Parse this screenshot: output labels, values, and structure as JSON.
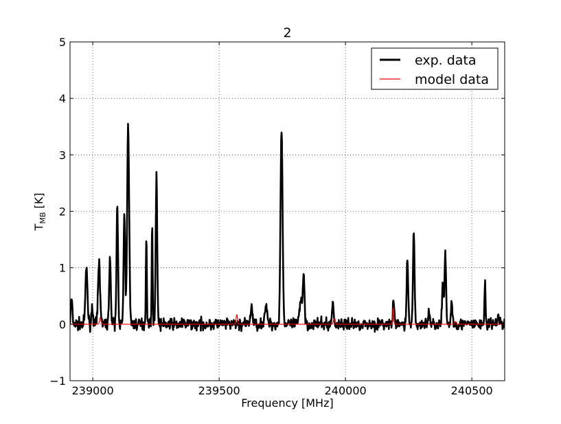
{
  "chart_data": {
    "type": "line",
    "title": "2",
    "xlabel": "Frequency [MHz]",
    "ylabel": "T",
    "ylabel_subscript": "MB",
    "ylabel_unit": "[K]",
    "xlim": [
      238910,
      240630
    ],
    "ylim": [
      -1,
      5
    ],
    "x_ticks": [
      239000,
      239500,
      240000,
      240500
    ],
    "x_tick_labels": [
      "239000",
      "239500",
      "240000",
      "240500"
    ],
    "y_ticks": [
      -1,
      0,
      1,
      2,
      3,
      4,
      5
    ],
    "y_tick_labels": [
      "−1",
      "0",
      "1",
      "2",
      "3",
      "4",
      "5"
    ],
    "grid": true,
    "legend_position": "top-right",
    "series": [
      {
        "name": "exp. data",
        "color": "#000000",
        "baseline": 0.0,
        "noise": 0.07,
        "peaks": [
          [
            238916,
            0.45,
            3
          ],
          [
            238975,
            1.0,
            4
          ],
          [
            238998,
            0.3,
            3
          ],
          [
            239025,
            1.1,
            4
          ],
          [
            239068,
            1.25,
            3
          ],
          [
            239097,
            2.1,
            3
          ],
          [
            239125,
            1.95,
            3
          ],
          [
            239140,
            3.5,
            4
          ],
          [
            239212,
            1.55,
            2
          ],
          [
            239235,
            1.7,
            2
          ],
          [
            239252,
            2.65,
            3
          ],
          [
            239628,
            0.3,
            4
          ],
          [
            239685,
            0.3,
            5
          ],
          [
            239747,
            3.5,
            4
          ],
          [
            239825,
            0.45,
            6
          ],
          [
            239835,
            0.8,
            3
          ],
          [
            239950,
            0.4,
            3
          ],
          [
            240190,
            0.38,
            3
          ],
          [
            240245,
            1.15,
            3
          ],
          [
            240270,
            1.65,
            3
          ],
          [
            240330,
            0.25,
            3
          ],
          [
            240385,
            0.7,
            3
          ],
          [
            240395,
            1.2,
            3
          ],
          [
            240420,
            0.4,
            3
          ],
          [
            240552,
            0.75,
            2
          ],
          [
            240605,
            0.15,
            4
          ]
        ]
      },
      {
        "name": "model data",
        "color": "#ff0000",
        "baseline": 0.0,
        "noise": 0.0,
        "peaks": [
          [
            239030,
            0.12,
            3
          ],
          [
            239570,
            0.17,
            3
          ],
          [
            239955,
            0.1,
            3
          ],
          [
            240189,
            0.3,
            2
          ],
          [
            240435,
            0.05,
            3
          ]
        ]
      }
    ]
  }
}
